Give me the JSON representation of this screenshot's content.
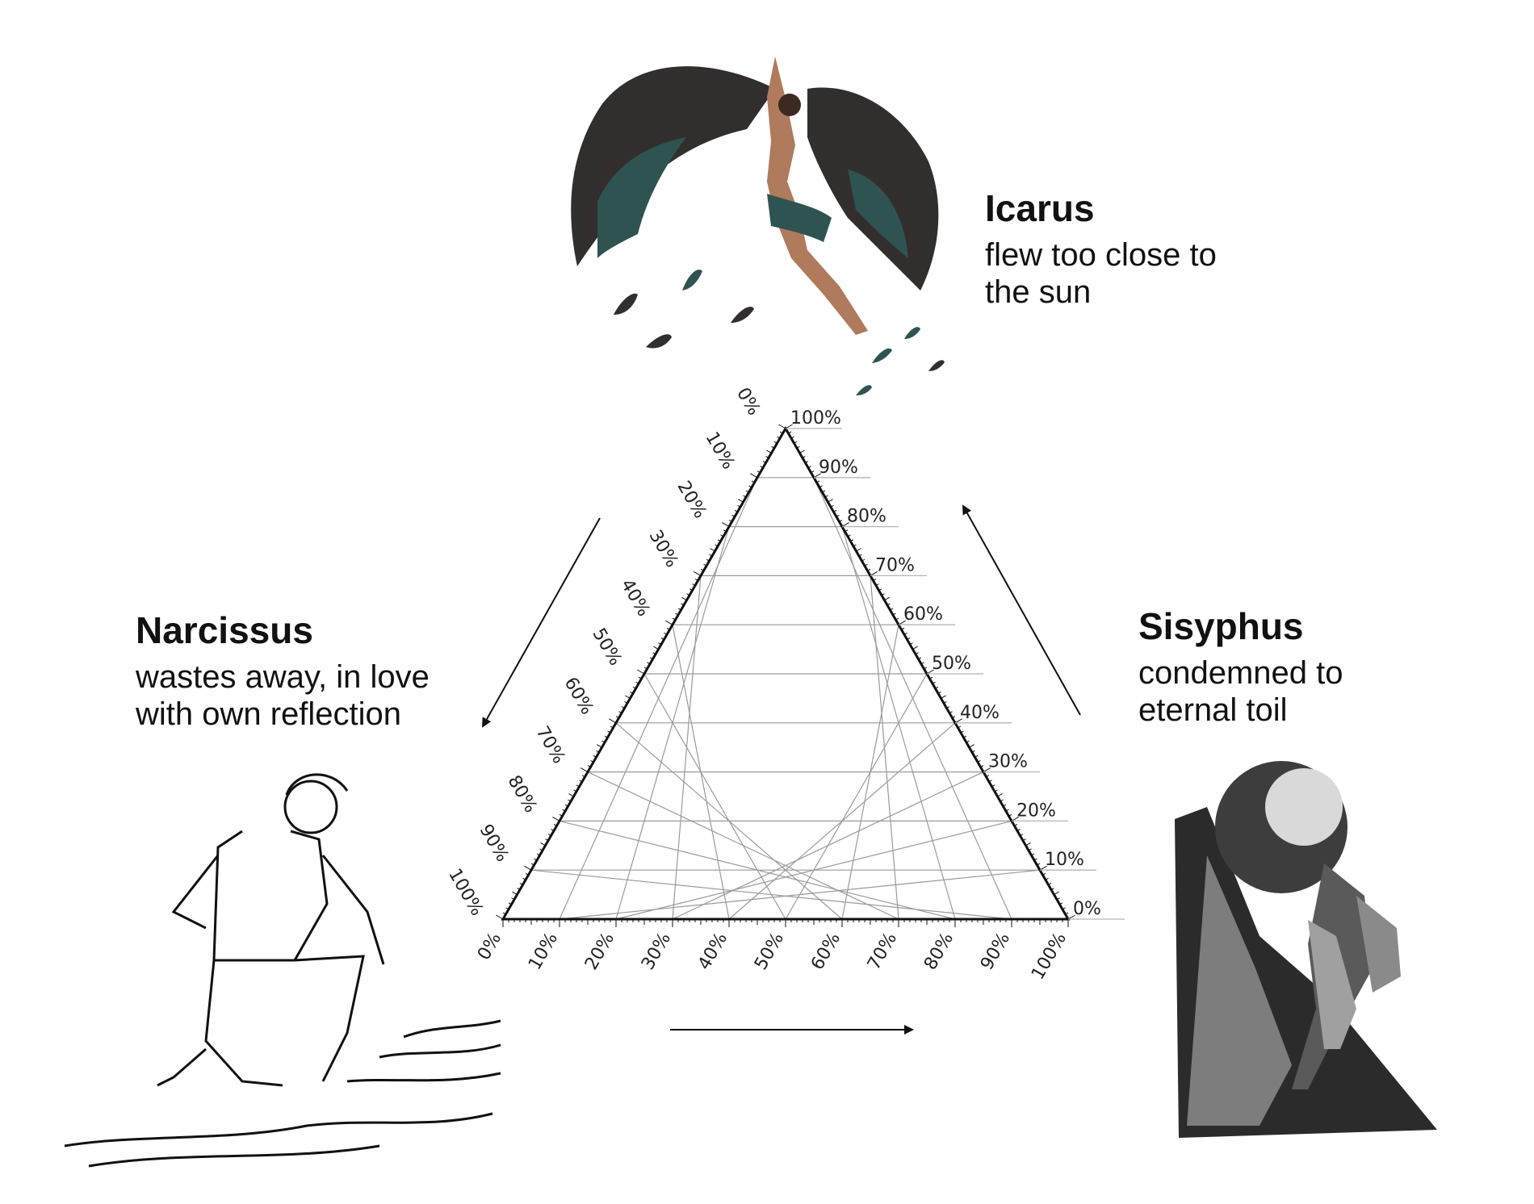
{
  "figures": {
    "icarus": {
      "name": "Icarus",
      "caption_line1": "flew too close to",
      "caption_line2": "the sun",
      "icon": "winged-man-icon",
      "colors": {
        "wing_dark": "#332e2e",
        "wing_teal": "#2f5350",
        "skin": "#b07a5c"
      }
    },
    "narcissus": {
      "name": "Narcissus",
      "caption_line1": "wastes away, in love",
      "caption_line2": "with own reflection",
      "icon": "kneeling-youth-icon"
    },
    "sisyphus": {
      "name": "Sisyphus",
      "caption_line1": "condemned to",
      "caption_line2": "eternal toil",
      "icon": "boulder-pusher-icon"
    }
  },
  "ternary": {
    "left_axis_ticks": [
      "0%",
      "10%",
      "20%",
      "30%",
      "40%",
      "50%",
      "60%",
      "70%",
      "80%",
      "90%",
      "100%"
    ],
    "right_axis_ticks": [
      "100%",
      "90%",
      "80%",
      "70%",
      "60%",
      "50%",
      "40%",
      "30%",
      "20%",
      "10%",
      "0%"
    ],
    "bottom_axis_ticks": [
      "0%",
      "10%",
      "20%",
      "30%",
      "40%",
      "50%",
      "60%",
      "70%",
      "80%",
      "90%",
      "100%"
    ],
    "colors": {
      "frame": "#111111",
      "grid": "#9a9a9a"
    }
  }
}
